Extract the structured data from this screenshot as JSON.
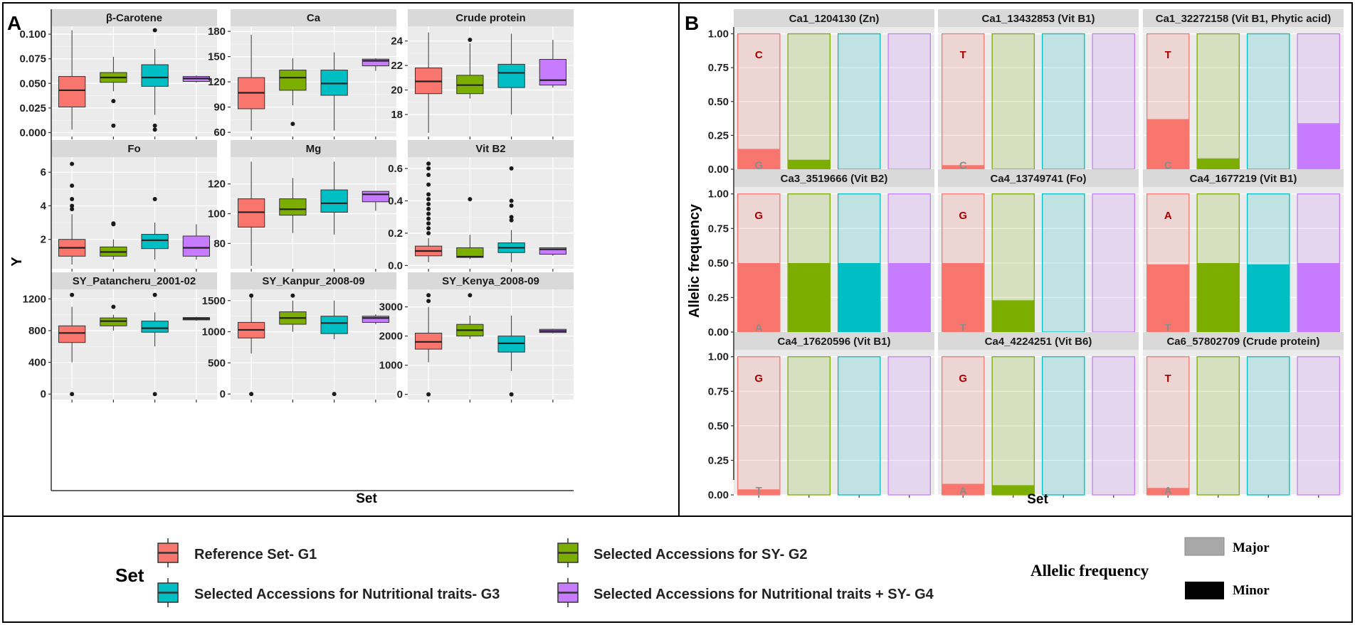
{
  "panel_labels": {
    "a": "A",
    "b": "B"
  },
  "colors": {
    "g1": "#F8766D",
    "g2": "#7CAE00",
    "g3": "#00BFC4",
    "g4": "#C77CFF",
    "strip": "#D9D9D9",
    "panel_bg": "#EBEBEB",
    "grid": "#FFFFFF",
    "minor_text": "#A80000",
    "major_text": "#8C8C8C"
  },
  "chart_data": [
    {
      "type": "box",
      "panel": "A",
      "ylabel": "Y",
      "xlabel": "Set",
      "groups": [
        "Reference Set- G1",
        "Selected Accessions for SY- G2",
        "Selected Accessions for Nutritional traits- G3",
        "Selected Accessions for Nutritional traits + SY- G4"
      ],
      "facets": [
        {
          "title": "β-Carotene",
          "ylim": [
            -0.004,
            0.108
          ],
          "ticks": [
            0.0,
            0.025,
            0.05,
            0.075,
            0.1
          ],
          "tick_labels": [
            "0.000",
            "0.025",
            "0.050",
            "0.075",
            "0.100"
          ],
          "boxes": [
            {
              "q1": 0.026,
              "median": 0.043,
              "q3": 0.057,
              "lo": 0.003,
              "hi": 0.104,
              "outliers": []
            },
            {
              "q1": 0.051,
              "median": 0.056,
              "q3": 0.061,
              "lo": 0.042,
              "hi": 0.077,
              "outliers": [
                0.032,
                0.007
              ]
            },
            {
              "q1": 0.047,
              "median": 0.056,
              "q3": 0.069,
              "lo": 0.018,
              "hi": 0.085,
              "outliers": [
                0.104,
                0.007,
                0.003
              ]
            },
            {
              "q1": 0.052,
              "median": 0.055,
              "q3": 0.057,
              "lo": 0.051,
              "hi": 0.058,
              "outliers": []
            }
          ]
        },
        {
          "title": "Ca",
          "ylim": [
            55,
            186
          ],
          "ticks": [
            60,
            90,
            120,
            150,
            180
          ],
          "tick_labels": [
            "60",
            "90",
            "120",
            "150",
            "180"
          ],
          "boxes": [
            {
              "q1": 88,
              "median": 107,
              "q3": 125,
              "lo": 62,
              "hi": 176,
              "outliers": []
            },
            {
              "q1": 110,
              "median": 125,
              "q3": 134,
              "lo": 92,
              "hi": 148,
              "outliers": [
                70
              ]
            },
            {
              "q1": 104,
              "median": 118,
              "q3": 134,
              "lo": 62,
              "hi": 155,
              "outliers": []
            },
            {
              "q1": 139,
              "median": 145,
              "q3": 147,
              "lo": 133,
              "hi": 148,
              "outliers": []
            }
          ]
        },
        {
          "title": "Crude protein",
          "ylim": [
            16.2,
            25.2
          ],
          "ticks": [
            18,
            20,
            22,
            24
          ],
          "tick_labels": [
            "18",
            "20",
            "22",
            "24"
          ],
          "boxes": [
            {
              "q1": 19.7,
              "median": 20.7,
              "q3": 21.8,
              "lo": 16.5,
              "hi": 24.7,
              "outliers": []
            },
            {
              "q1": 19.7,
              "median": 20.4,
              "q3": 21.2,
              "lo": 19.3,
              "hi": 23.8,
              "outliers": [
                24.1
              ]
            },
            {
              "q1": 20.2,
              "median": 21.4,
              "q3": 22.1,
              "lo": 18.0,
              "hi": 24.6,
              "outliers": []
            },
            {
              "q1": 20.4,
              "median": 20.8,
              "q3": 22.5,
              "lo": 20.2,
              "hi": 24.1,
              "outliers": []
            }
          ]
        },
        {
          "title": "Fo",
          "ylim": [
            0.25,
            6.9
          ],
          "ticks": [
            2,
            4,
            6
          ],
          "tick_labels": [
            "2",
            "4",
            "6"
          ],
          "boxes": [
            {
              "q1": 1.0,
              "median": 1.5,
              "q3": 2.0,
              "lo": 0.5,
              "hi": 3.5,
              "outliers": [
                3.8,
                4.0,
                4.4,
                5.2,
                6.5
              ]
            },
            {
              "q1": 1.0,
              "median": 1.25,
              "q3": 1.55,
              "lo": 0.8,
              "hi": 2.0,
              "outliers": [
                2.9,
                2.95
              ]
            },
            {
              "q1": 1.45,
              "median": 1.95,
              "q3": 2.3,
              "lo": 0.8,
              "hi": 3.0,
              "outliers": [
                4.4
              ]
            },
            {
              "q1": 1.0,
              "median": 1.5,
              "q3": 2.2,
              "lo": 0.8,
              "hi": 2.9,
              "outliers": []
            }
          ]
        },
        {
          "title": "Mg",
          "ylim": [
            63,
            138
          ],
          "ticks": [
            80,
            100,
            120
          ],
          "tick_labels": [
            "80",
            "100",
            "120"
          ],
          "boxes": [
            {
              "q1": 91,
              "median": 101,
              "q3": 110,
              "lo": 65,
              "hi": 135,
              "outliers": []
            },
            {
              "q1": 99,
              "median": 103,
              "q3": 110,
              "lo": 87,
              "hi": 124,
              "outliers": []
            },
            {
              "q1": 101,
              "median": 107,
              "q3": 116,
              "lo": 86,
              "hi": 135,
              "outliers": []
            },
            {
              "q1": 108,
              "median": 113,
              "q3": 115,
              "lo": 102,
              "hi": 115,
              "outliers": []
            }
          ]
        },
        {
          "title": "Vit B2",
          "ylim": [
            -0.02,
            0.67
          ],
          "ticks": [
            0.0,
            0.2,
            0.4,
            0.6
          ],
          "tick_labels": [
            "0.0",
            "0.2",
            "0.4",
            "0.6"
          ],
          "boxes": [
            {
              "q1": 0.06,
              "median": 0.09,
              "q3": 0.12,
              "lo": 0.02,
              "hi": 0.17,
              "outliers": [
                0.2,
                0.23,
                0.26,
                0.29,
                0.32,
                0.35,
                0.38,
                0.41,
                0.44,
                0.5,
                0.56,
                0.6,
                0.63
              ]
            },
            {
              "q1": 0.05,
              "median": 0.055,
              "q3": 0.11,
              "lo": 0.04,
              "hi": 0.19,
              "outliers": [
                0.41
              ]
            },
            {
              "q1": 0.08,
              "median": 0.11,
              "q3": 0.14,
              "lo": 0.02,
              "hi": 0.22,
              "outliers": [
                0.28,
                0.3,
                0.37,
                0.4,
                0.6
              ]
            },
            {
              "q1": 0.07,
              "median": 0.1,
              "q3": 0.11,
              "lo": 0.06,
              "hi": 0.11,
              "outliers": []
            }
          ]
        },
        {
          "title": "SY_Patancheru_2001-02",
          "ylim": [
            -70,
            1320
          ],
          "ticks": [
            0,
            400,
            800,
            1200
          ],
          "tick_labels": [
            "0",
            "400",
            "800",
            "1200"
          ],
          "boxes": [
            {
              "q1": 650,
              "median": 770,
              "q3": 860,
              "lo": 400,
              "hi": 1100,
              "outliers": [
                0,
                1250
              ]
            },
            {
              "q1": 860,
              "median": 920,
              "q3": 960,
              "lo": 800,
              "hi": 1000,
              "outliers": [
                1100
              ]
            },
            {
              "q1": 780,
              "median": 830,
              "q3": 920,
              "lo": 600,
              "hi": 1030,
              "outliers": [
                1250,
                0
              ]
            },
            {
              "q1": 935,
              "median": 950,
              "q3": 965,
              "lo": 925,
              "hi": 975,
              "outliers": []
            }
          ]
        },
        {
          "title": "SY_Kanpur_2008-09",
          "ylim": [
            -90,
            1680
          ],
          "ticks": [
            0,
            500,
            1000,
            1500
          ],
          "tick_labels": [
            "0",
            "500",
            "1000",
            "1500"
          ],
          "boxes": [
            {
              "q1": 900,
              "median": 1030,
              "q3": 1150,
              "lo": 650,
              "hi": 1550,
              "outliers": [
                0,
                1580
              ]
            },
            {
              "q1": 1120,
              "median": 1220,
              "q3": 1320,
              "lo": 1000,
              "hi": 1500,
              "outliers": [
                1580
              ]
            },
            {
              "q1": 970,
              "median": 1140,
              "q3": 1250,
              "lo": 880,
              "hi": 1500,
              "outliers": [
                0
              ]
            },
            {
              "q1": 1150,
              "median": 1220,
              "q3": 1250,
              "lo": 1120,
              "hi": 1280,
              "outliers": []
            }
          ]
        },
        {
          "title": "SY_Kenya_2008-09",
          "ylim": [
            -180,
            3600
          ],
          "ticks": [
            0,
            1000,
            2000,
            3000
          ],
          "tick_labels": [
            "0",
            "1000",
            "2000",
            "3000"
          ],
          "boxes": [
            {
              "q1": 1550,
              "median": 1800,
              "q3": 2100,
              "lo": 1100,
              "hi": 3000,
              "outliers": [
                0,
                3200,
                3400
              ]
            },
            {
              "q1": 2000,
              "median": 2200,
              "q3": 2400,
              "lo": 1900,
              "hi": 2700,
              "outliers": [
                3400
              ]
            },
            {
              "q1": 1450,
              "median": 1750,
              "q3": 2000,
              "lo": 800,
              "hi": 2700,
              "outliers": [
                0
              ]
            },
            {
              "q1": 2120,
              "median": 2170,
              "q3": 2230,
              "lo": 2090,
              "hi": 2250,
              "outliers": []
            }
          ]
        }
      ]
    },
    {
      "type": "bar",
      "panel": "B",
      "ylabel": "Allelic frequency",
      "xlabel": "Set",
      "ylim": [
        0,
        1.05
      ],
      "ticks": [
        0.0,
        0.25,
        0.5,
        0.75,
        1.0
      ],
      "tick_labels": [
        "0.00",
        "0.25",
        "0.50",
        "0.75",
        "1.00"
      ],
      "facets": [
        {
          "title": "Ca1_1204130 (Zn)",
          "major_allele": "C",
          "minor_allele": "G",
          "minor_freq": [
            0.15,
            0.07,
            0.0,
            0.0
          ]
        },
        {
          "title": "Ca1_13432853 (Vit B1)",
          "major_allele": "T",
          "minor_allele": "C",
          "minor_freq": [
            0.03,
            0.0,
            0.0,
            0.0
          ]
        },
        {
          "title": "Ca1_32272158 (Vit B1, Phytic acid)",
          "major_allele": "T",
          "minor_allele": "C",
          "minor_freq": [
            0.37,
            0.08,
            0.0,
            0.34
          ]
        },
        {
          "title": "Ca3_3519666 (Vit B2)",
          "major_allele": "G",
          "minor_allele": "A",
          "minor_freq": [
            0.5,
            0.5,
            0.5,
            0.5
          ]
        },
        {
          "title": "Ca4_13749741 (Fo)",
          "major_allele": "G",
          "minor_allele": "T",
          "minor_freq": [
            0.5,
            0.23,
            0.0,
            0.0
          ]
        },
        {
          "title": "Ca4_1677219 (Vit B1)",
          "major_allele": "A",
          "minor_allele": "T",
          "minor_freq": [
            0.49,
            0.5,
            0.49,
            0.5
          ]
        },
        {
          "title": "Ca4_17620596 (Vit B1)",
          "major_allele": "G",
          "minor_allele": "T",
          "minor_freq": [
            0.04,
            0.0,
            0.0,
            0.0
          ]
        },
        {
          "title": "Ca4_4224251 (Vit B6)",
          "major_allele": "G",
          "minor_allele": "A",
          "minor_freq": [
            0.08,
            0.07,
            0.0,
            0.0
          ]
        },
        {
          "title": "Ca6_57802709 (Crude protein)",
          "major_allele": "T",
          "minor_allele": "A",
          "minor_freq": [
            0.05,
            0.0,
            0.0,
            0.0
          ]
        }
      ]
    }
  ],
  "legend": {
    "set_title": "Set",
    "items": [
      "Reference Set- G1",
      "Selected Accessions for SY- G2",
      "Selected Accessions for Nutritional traits- G3",
      "Selected Accessions for Nutritional traits + SY- G4"
    ],
    "allele_title": "Allelic frequency",
    "allele_items": [
      "Major",
      "Minor"
    ]
  }
}
